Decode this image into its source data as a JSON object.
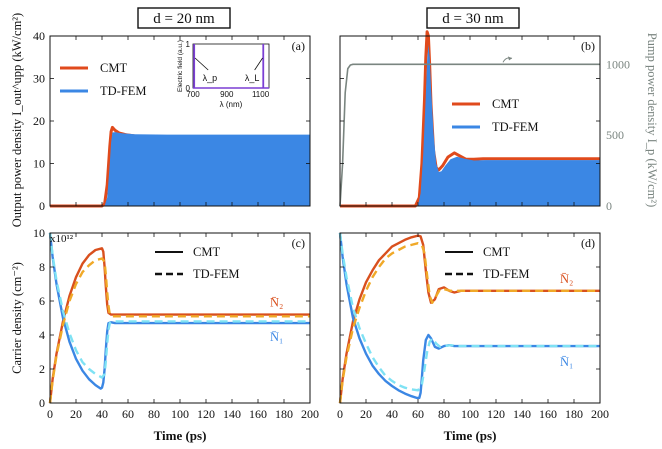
{
  "chart_data": [
    {
      "panel": "(a)",
      "type": "line",
      "header": "d = 20 nm",
      "ylabel": "Output power density I_out^upp (kW/cm²)",
      "xlim": [
        0,
        200
      ],
      "ylim": [
        0,
        40
      ],
      "yticks": [
        0,
        10,
        20,
        30,
        40
      ],
      "legend": [
        "CMT",
        "TD-FEM"
      ],
      "series": [
        {
          "name": "CMT",
          "color": "#e04a1c",
          "x": [
            0,
            40,
            42,
            44,
            46,
            47,
            48,
            50,
            53,
            58,
            65,
            80,
            120,
            200
          ],
          "y": [
            0,
            0,
            0.5,
            5,
            14,
            17.5,
            18.5,
            17.8,
            17.2,
            16.8,
            16.5,
            16.3,
            16.2,
            16.1
          ]
        },
        {
          "name": "TD-FEM",
          "color": "#3b87e4",
          "x": [
            0,
            42,
            44,
            46,
            47,
            48,
            50,
            55,
            65,
            90,
            200
          ],
          "y": [
            0,
            0,
            2,
            10,
            15,
            17.3,
            17.4,
            17.1,
            16.9,
            16.8,
            16.8
          ]
        }
      ],
      "inset": {
        "xlabel": "λ (nm)",
        "ylabel": "Electric field (a.u.)",
        "xticks": [
          700,
          900,
          1100
        ],
        "yticks": [
          0,
          1
        ],
        "xlim": [
          700,
          1150
        ],
        "ylim": [
          0,
          1
        ],
        "lines_x": [
          707,
          1116
        ],
        "pump_label": "λ_p",
        "lasing_label": "λ_L",
        "color": "#7b3fd4"
      }
    },
    {
      "panel": "(b)",
      "type": "line",
      "header": "d = 30 nm",
      "xlim": [
        0,
        200
      ],
      "ylim": [
        0,
        40
      ],
      "y2label": "Pump power density I_p (kW/cm²)",
      "y2lim": [
        0,
        1200
      ],
      "y2ticks": [
        0,
        500,
        1000
      ],
      "legend": [
        "CMT",
        "TD-FEM"
      ],
      "series": [
        {
          "name": "CMT",
          "color": "#e04a1c",
          "x": [
            0,
            58,
            61,
            63,
            65,
            66,
            67,
            68,
            69,
            70,
            72,
            74,
            76,
            79,
            83,
            88,
            92,
            97,
            103,
            110,
            130,
            200
          ],
          "y": [
            0,
            0,
            2,
            10,
            25,
            35,
            41,
            40,
            33,
            24,
            13,
            9,
            8.5,
            9.5,
            11.5,
            12.5,
            11.8,
            11,
            11,
            11.1,
            11.1,
            11.1
          ]
        },
        {
          "name": "TD-FEM",
          "color": "#3b87e4",
          "x": [
            0,
            60,
            62,
            64,
            66,
            67,
            68,
            69,
            70,
            72,
            74,
            76,
            78,
            81,
            85,
            90,
            96,
            103,
            112,
            130,
            200
          ],
          "y": [
            0,
            0,
            3,
            12,
            26,
            34,
            38,
            35,
            28,
            17,
            10,
            8,
            8.2,
            9.5,
            11,
            11.6,
            11.1,
            10.7,
            10.8,
            10.8,
            10.8
          ]
        },
        {
          "name": "Pump",
          "axis": "y2",
          "color": "#7a8580",
          "x": [
            0,
            2,
            4,
            6,
            8,
            10,
            200
          ],
          "y": [
            0,
            300,
            800,
            970,
            995,
            1000,
            1000
          ]
        }
      ]
    },
    {
      "panel": "(c)",
      "type": "line",
      "xlabel": "Time (ps)",
      "ylabel": "Carrier density (cm⁻²)",
      "yexp": "x10¹²",
      "xlim": [
        0,
        200
      ],
      "ylim": [
        0,
        10
      ],
      "xticks": [
        0,
        20,
        40,
        60,
        80,
        100,
        120,
        140,
        160,
        180,
        200
      ],
      "yticks": [
        0,
        2,
        4,
        6,
        8,
        10
      ],
      "legend": [
        "CMT",
        "TD-FEM"
      ],
      "n2_label": "N̄₂",
      "n1_label": "N̄₁",
      "series": [
        {
          "name": "N2 CMT",
          "color": "#d9501e",
          "dash": false,
          "x": [
            0,
            2,
            5,
            10,
            15,
            20,
            25,
            30,
            35,
            40,
            41,
            42,
            43,
            44,
            45,
            47,
            50,
            60,
            80,
            120,
            200
          ],
          "y": [
            0,
            1.4,
            2.9,
            4.8,
            6.3,
            7.4,
            8.2,
            8.7,
            9.0,
            9.1,
            8.9,
            8.0,
            6.8,
            5.8,
            5.3,
            5.2,
            5.2,
            5.2,
            5.2,
            5.2,
            5.2
          ]
        },
        {
          "name": "N1 CMT",
          "color": "#3b87e4",
          "dash": false,
          "x": [
            0,
            2,
            5,
            10,
            15,
            20,
            25,
            30,
            35,
            39,
            40,
            41,
            42,
            43,
            44,
            45,
            47,
            50,
            60,
            100,
            200
          ],
          "y": [
            10,
            8.6,
            7.0,
            5.0,
            3.6,
            2.6,
            1.9,
            1.4,
            1.05,
            0.85,
            0.9,
            1.2,
            2.0,
            3.2,
            4.2,
            4.7,
            4.75,
            4.7,
            4.7,
            4.7,
            4.7
          ]
        },
        {
          "name": "N2 TD-FEM",
          "color": "#f0a928",
          "dash": true,
          "x": [
            0,
            2,
            5,
            10,
            15,
            20,
            25,
            30,
            35,
            40,
            42,
            43,
            44,
            45,
            46,
            48,
            50,
            60,
            100,
            200
          ],
          "y": [
            0,
            1.3,
            2.8,
            4.6,
            6.0,
            7.0,
            7.7,
            8.1,
            8.4,
            8.5,
            8.3,
            7.5,
            6.5,
            5.7,
            5.2,
            5.1,
            5.1,
            5.1,
            5.1,
            5.1
          ]
        },
        {
          "name": "N1 TD-FEM",
          "color": "#7fe2f4",
          "dash": true,
          "x": [
            0,
            2,
            5,
            10,
            15,
            20,
            25,
            30,
            35,
            40,
            42,
            43,
            44,
            45,
            46,
            48,
            50,
            60,
            100,
            200
          ],
          "y": [
            10,
            8.7,
            7.2,
            5.4,
            4.1,
            3.1,
            2.4,
            2.0,
            1.7,
            1.5,
            1.7,
            2.5,
            3.5,
            4.3,
            4.7,
            4.8,
            4.8,
            4.8,
            4.8,
            4.8
          ]
        }
      ]
    },
    {
      "panel": "(d)",
      "type": "line",
      "xlabel": "Time (ps)",
      "xlim": [
        0,
        200
      ],
      "ylim": [
        0,
        10
      ],
      "xticks": [
        0,
        20,
        40,
        60,
        80,
        100,
        120,
        140,
        160,
        180,
        200
      ],
      "legend": [
        "CMT",
        "TD-FEM"
      ],
      "n2_label": "N̄₂",
      "n1_label": "N̄₁",
      "series": [
        {
          "name": "N2 CMT",
          "color": "#d9501e",
          "dash": false,
          "x": [
            0,
            2,
            5,
            10,
            15,
            20,
            25,
            30,
            35,
            40,
            45,
            50,
            55,
            60,
            62,
            64,
            66,
            68,
            70,
            73,
            76,
            80,
            84,
            88,
            93,
            100,
            120,
            200
          ],
          "y": [
            0,
            1.4,
            2.9,
            4.8,
            6.1,
            7.1,
            7.8,
            8.4,
            8.8,
            9.2,
            9.4,
            9.6,
            9.75,
            9.85,
            9.8,
            9.3,
            7.8,
            6.5,
            5.9,
            6.1,
            6.7,
            6.8,
            6.6,
            6.5,
            6.6,
            6.6,
            6.6,
            6.6
          ]
        },
        {
          "name": "N1 CMT",
          "color": "#3b87e4",
          "dash": false,
          "x": [
            0,
            2,
            5,
            10,
            15,
            20,
            25,
            30,
            35,
            40,
            45,
            50,
            55,
            59,
            61,
            62,
            63,
            64,
            66,
            68,
            70,
            73,
            76,
            80,
            84,
            88,
            93,
            100,
            120,
            200
          ],
          "y": [
            10,
            8.6,
            7.0,
            5.0,
            3.8,
            2.9,
            2.2,
            1.7,
            1.3,
            1.0,
            0.75,
            0.55,
            0.4,
            0.3,
            0.3,
            0.6,
            1.5,
            2.5,
            3.7,
            4.0,
            3.8,
            3.3,
            3.2,
            3.35,
            3.4,
            3.35,
            3.35,
            3.35,
            3.35,
            3.35
          ]
        },
        {
          "name": "N2 TD-FEM",
          "color": "#f0a928",
          "dash": true,
          "x": [
            0,
            2,
            5,
            10,
            15,
            20,
            25,
            30,
            35,
            40,
            45,
            50,
            55,
            60,
            63,
            65,
            67,
            69,
            71,
            74,
            77,
            80,
            85,
            90,
            100,
            120,
            200
          ],
          "y": [
            0,
            1.3,
            2.7,
            4.4,
            5.6,
            6.6,
            7.4,
            8.0,
            8.5,
            8.8,
            9.0,
            9.2,
            9.3,
            9.4,
            9.3,
            8.8,
            7.5,
            6.3,
            5.9,
            6.3,
            6.7,
            6.7,
            6.6,
            6.6,
            6.6,
            6.6,
            6.6
          ]
        },
        {
          "name": "N1 TD-FEM",
          "color": "#7fe2f4",
          "dash": true,
          "x": [
            0,
            2,
            5,
            10,
            15,
            20,
            25,
            30,
            35,
            40,
            45,
            50,
            55,
            60,
            63,
            65,
            67,
            69,
            71,
            74,
            77,
            80,
            85,
            90,
            100,
            120,
            200
          ],
          "y": [
            10,
            8.8,
            7.4,
            5.6,
            4.4,
            3.5,
            2.7,
            2.1,
            1.6,
            1.3,
            1.05,
            0.9,
            0.8,
            0.75,
            1.1,
            2.0,
            3.0,
            3.6,
            3.8,
            3.5,
            3.3,
            3.35,
            3.4,
            3.35,
            3.35,
            3.35,
            3.35
          ]
        }
      ]
    }
  ]
}
